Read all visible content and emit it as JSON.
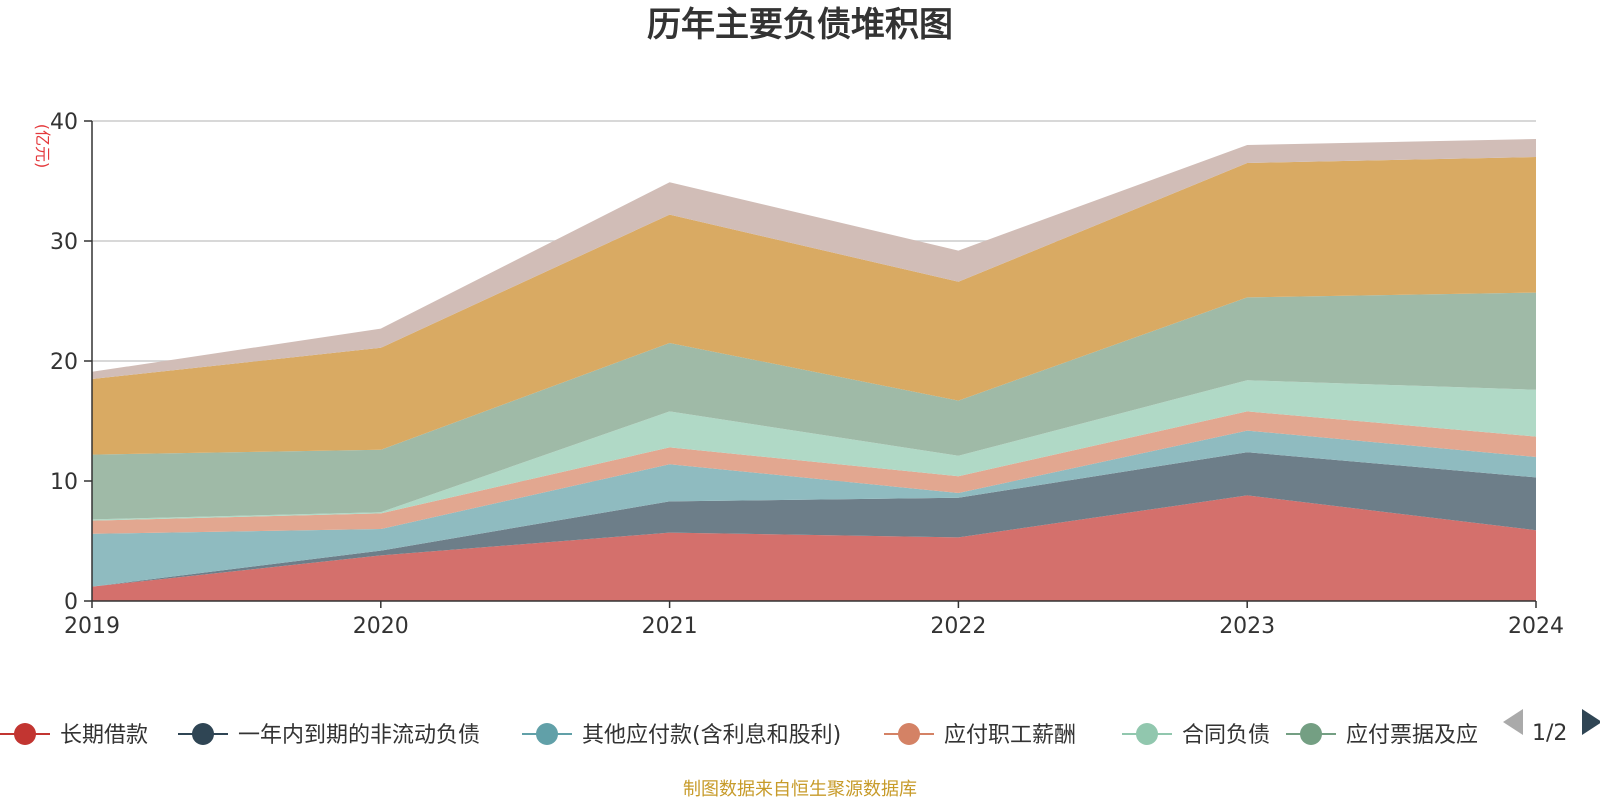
{
  "chart_data": {
    "type": "area",
    "stacked": true,
    "title": "历年主要负债堆积图",
    "unit_label": "(亿元)",
    "x": [
      "2019",
      "2020",
      "2021",
      "2022",
      "2023",
      "2024"
    ],
    "ylim": [
      0,
      40
    ],
    "yticks": [
      0,
      10,
      20,
      30,
      40
    ],
    "grid": true,
    "legend_position": "bottom",
    "series": [
      {
        "name": "长期借款",
        "color": "#c23531",
        "fill": "#d4706c",
        "values": [
          1.2,
          3.8,
          5.7,
          5.3,
          8.8,
          5.9
        ]
      },
      {
        "name": "一年内到期的非流动负债",
        "color": "#2f4554",
        "fill": "#6d7e89",
        "values": [
          0.0,
          0.4,
          2.6,
          3.3,
          3.6,
          4.4
        ]
      },
      {
        "name": "其他应付款(含利息和股利)",
        "color": "#61a0a8",
        "fill": "#8fbbc0",
        "values": [
          4.4,
          1.8,
          3.1,
          0.4,
          1.8,
          1.7
        ]
      },
      {
        "name": "应付职工薪酬",
        "color": "#d48265",
        "fill": "#e2a790",
        "values": [
          1.1,
          1.3,
          1.4,
          1.4,
          1.6,
          1.7
        ]
      },
      {
        "name": "合同负债",
        "color": "#91c7ae",
        "fill": "#b0d9c6",
        "values": [
          0.1,
          0.1,
          3.0,
          1.7,
          2.6,
          3.9
        ]
      },
      {
        "name": "应付票据及应付账款",
        "color": "#749f83",
        "fill": "#9fbaa7",
        "values": [
          5.4,
          5.2,
          5.7,
          4.6,
          6.9,
          8.1
        ]
      },
      {
        "name": "",
        "color": "#ca8622",
        "fill": "#d9aa63",
        "values": [
          6.3,
          8.5,
          10.7,
          9.9,
          11.2,
          11.3
        ]
      },
      {
        "name": "",
        "color": "#bda29a",
        "fill": "#d1bdb7",
        "values": [
          0.6,
          1.6,
          2.7,
          2.6,
          1.5,
          1.5
        ]
      }
    ]
  },
  "legend": {
    "visible_labels": [
      "长期借款",
      "一年内到期的非流动负债",
      "其他应付款(含利息和股利)",
      "应付职工薪酬",
      "合同负债",
      "应付票据及应"
    ],
    "page_indicator": "1/2",
    "prev_icon": "triangle-left-icon",
    "next_icon": "triangle-right-icon",
    "prev_color": "#aaaaaa",
    "next_color": "#2f4554"
  },
  "footer": {
    "note": "制图数据来自恒生聚源数据库"
  }
}
